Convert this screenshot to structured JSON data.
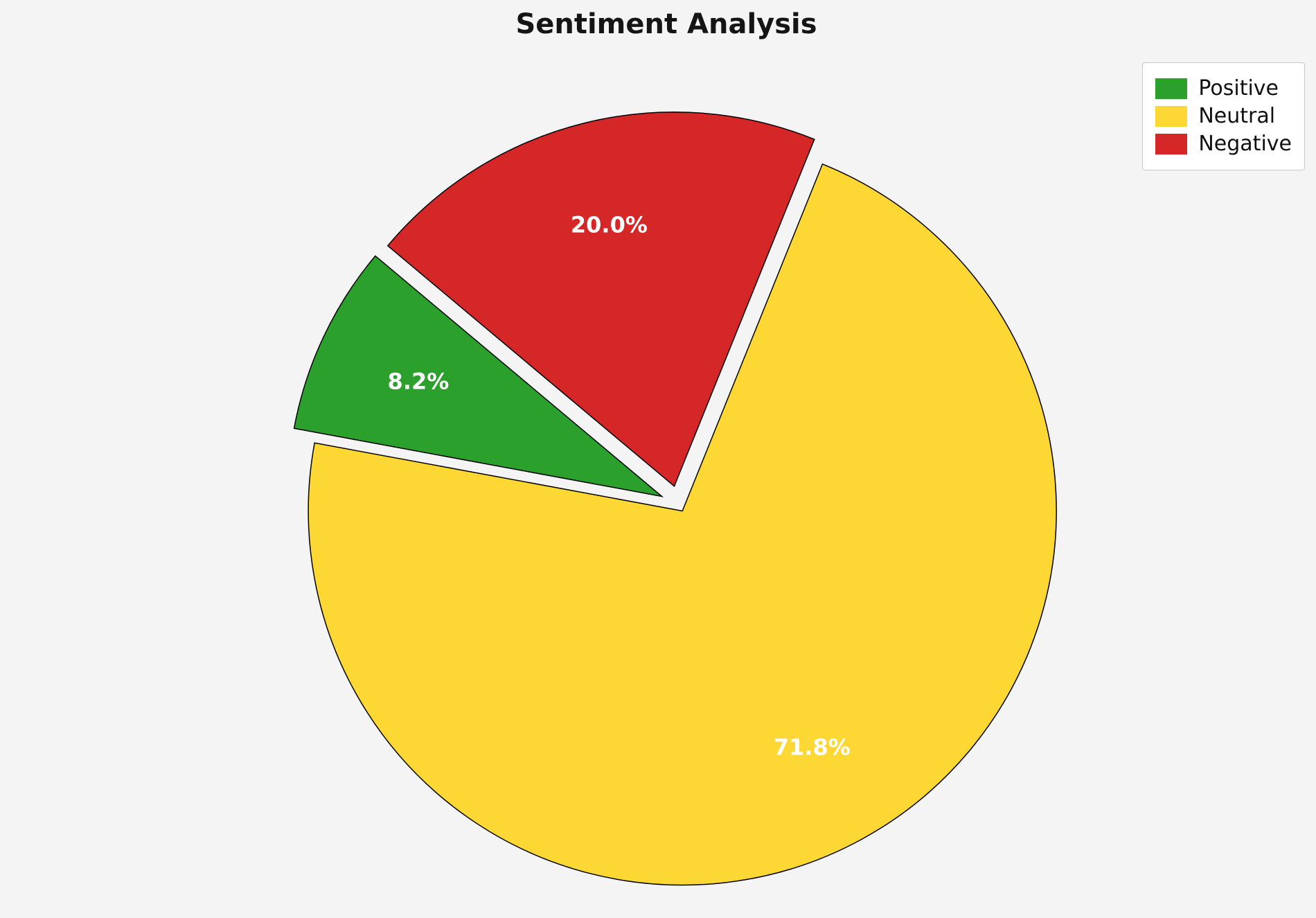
{
  "page": {
    "background": "#f4f4f4"
  },
  "title": "Sentiment Analysis",
  "chart_data": {
    "type": "pie",
    "title": "Sentiment Analysis",
    "slices": [
      {
        "label": "Positive",
        "value": 8.2,
        "pct_label": "8.2%",
        "color": "#2ca02c",
        "explode": 0.05
      },
      {
        "label": "Neutral",
        "value": 71.8,
        "pct_label": "71.8%",
        "color": "#FDD835",
        "explode": 0.02
      },
      {
        "label": "Negative",
        "value": 20.0,
        "pct_label": "20.0%",
        "color": "#d62728",
        "explode": 0.05
      }
    ],
    "start_angle": 140,
    "counterclockwise": true,
    "pct_distance": 0.72,
    "edge_color": "#000000",
    "pct_label_color": "#ffffff",
    "legend": {
      "position": "upper-right",
      "labels": [
        "Positive",
        "Neutral",
        "Negative"
      ]
    }
  }
}
